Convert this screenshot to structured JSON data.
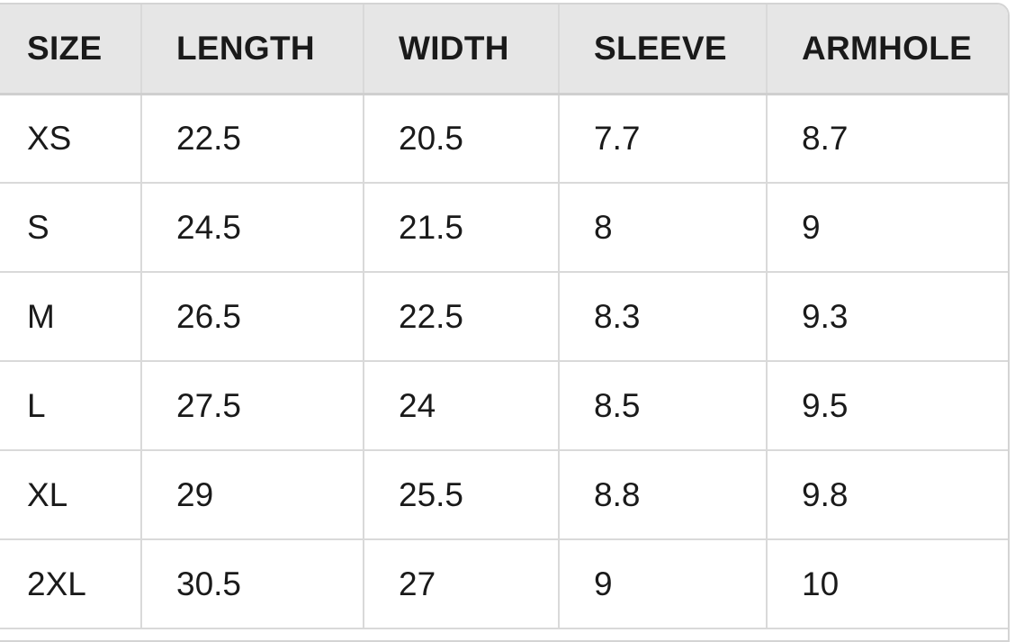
{
  "table": {
    "headers": [
      "SIZE",
      "LENGTH",
      "WIDTH",
      "SLEEVE",
      "ARMHOLE"
    ],
    "rows": [
      [
        "XS",
        "22.5",
        "20.5",
        "7.7",
        "8.7"
      ],
      [
        "S",
        "24.5",
        "21.5",
        "8",
        "9"
      ],
      [
        "M",
        "26.5",
        "22.5",
        "8.3",
        "9.3"
      ],
      [
        "L",
        "27.5",
        "24",
        "8.5",
        "9.5"
      ],
      [
        "XL",
        "29",
        "25.5",
        "8.8",
        "9.8"
      ],
      [
        "2XL",
        "30.5",
        "27",
        "9",
        "10"
      ]
    ]
  }
}
